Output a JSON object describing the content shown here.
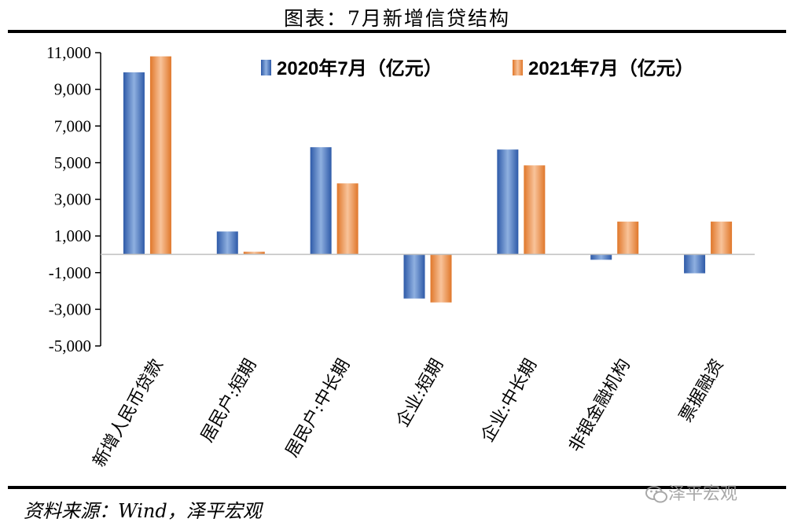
{
  "header": {
    "title": "图表：7月新增信贷结构"
  },
  "footer": {
    "source": "资料来源：Wind，泽平宏观",
    "watermark": "泽平宏观"
  },
  "chart_data": {
    "type": "bar",
    "title": "图表：7月新增信贷结构",
    "categories": [
      "新增人民币贷款",
      "居民户:短期",
      "居民户:中长期",
      "企业:短期",
      "企业:中长期",
      "非银金融机构",
      "票据融资"
    ],
    "series": [
      {
        "name": "2020年7月（亿元）",
        "color": "#4472c4",
        "values": [
          9927,
          1245,
          5843,
          -2413,
          5716,
          -298,
          -1035
        ]
      },
      {
        "name": "2021年7月（亿元）",
        "color": "#ed7d31",
        "values": [
          10800,
          139,
          3869,
          -2626,
          4852,
          1785,
          1786
        ]
      }
    ],
    "yticks": [
      "11,000",
      "9,000",
      "7,000",
      "5,000",
      "3,000",
      "1,000",
      "-1,000",
      "-3,000",
      "-5,000"
    ],
    "ylim": [
      -5000,
      11000
    ],
    "legend_position": "top"
  }
}
